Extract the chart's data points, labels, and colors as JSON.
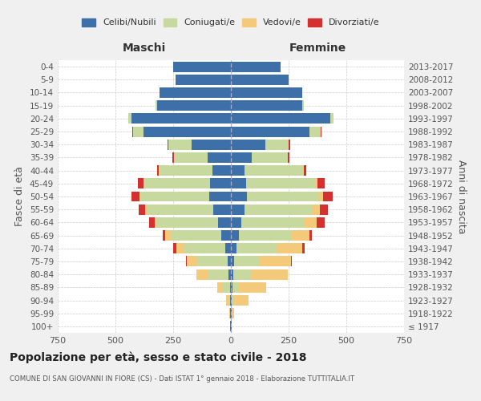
{
  "age_groups": [
    "100+",
    "95-99",
    "90-94",
    "85-89",
    "80-84",
    "75-79",
    "70-74",
    "65-69",
    "60-64",
    "55-59",
    "50-54",
    "45-49",
    "40-44",
    "35-39",
    "30-34",
    "25-29",
    "20-24",
    "15-19",
    "10-14",
    "5-9",
    "0-4"
  ],
  "birth_years": [
    "≤ 1917",
    "1918-1922",
    "1923-1927",
    "1928-1932",
    "1933-1937",
    "1938-1942",
    "1943-1947",
    "1948-1952",
    "1953-1957",
    "1958-1962",
    "1963-1967",
    "1968-1972",
    "1973-1977",
    "1978-1982",
    "1983-1987",
    "1988-1992",
    "1993-1997",
    "1998-2002",
    "2003-2007",
    "2008-2012",
    "2013-2017"
  ],
  "maschi": {
    "celibi": [
      2,
      2,
      3,
      5,
      10,
      15,
      25,
      40,
      55,
      75,
      95,
      90,
      80,
      100,
      170,
      380,
      430,
      320,
      310,
      240,
      250
    ],
    "coniugati": [
      1,
      3,
      8,
      30,
      90,
      130,
      175,
      220,
      265,
      290,
      295,
      285,
      230,
      145,
      100,
      45,
      15,
      5,
      0,
      0,
      0
    ],
    "vedovi": [
      0,
      2,
      10,
      25,
      50,
      45,
      35,
      25,
      10,
      5,
      5,
      2,
      1,
      1,
      0,
      0,
      0,
      0,
      0,
      0,
      0
    ],
    "divorziati": [
      0,
      0,
      0,
      0,
      0,
      5,
      15,
      10,
      25,
      30,
      35,
      25,
      8,
      8,
      5,
      3,
      0,
      0,
      0,
      0,
      0
    ]
  },
  "femmine": {
    "nubili": [
      2,
      3,
      5,
      8,
      10,
      15,
      25,
      35,
      45,
      60,
      70,
      65,
      60,
      90,
      150,
      340,
      430,
      310,
      310,
      250,
      215
    ],
    "coniugate": [
      1,
      2,
      5,
      25,
      80,
      110,
      175,
      225,
      270,
      295,
      310,
      300,
      250,
      155,
      100,
      50,
      15,
      5,
      0,
      0,
      0
    ],
    "vedove": [
      1,
      10,
      65,
      120,
      155,
      135,
      110,
      80,
      55,
      30,
      20,
      10,
      5,
      2,
      1,
      0,
      0,
      0,
      0,
      0,
      0
    ],
    "divorziate": [
      0,
      0,
      0,
      0,
      0,
      5,
      10,
      10,
      35,
      35,
      40,
      30,
      10,
      8,
      5,
      3,
      0,
      0,
      0,
      0,
      0
    ]
  },
  "colors": {
    "celibi_nubili": "#3d6fa8",
    "coniugati": "#c8d9a0",
    "vedovi": "#f5c97a",
    "divorziati": "#d43030"
  },
  "title": "Popolazione per età, sesso e stato civile - 2018",
  "subtitle": "COMUNE DI SAN GIOVANNI IN FIORE (CS) - Dati ISTAT 1° gennaio 2018 - Elaborazione TUTTITALIA.IT",
  "ylabel": "Fasce di età",
  "ylabel_right": "Anni di nascita",
  "xlabel_left": "Maschi",
  "xlabel_right": "Femmine",
  "xlim": 750,
  "background_color": "#f0f0f0",
  "plot_background": "#ffffff",
  "legend_labels": [
    "Celibi/Nubili",
    "Coniugati/e",
    "Vedovi/e",
    "Divorziati/e"
  ]
}
